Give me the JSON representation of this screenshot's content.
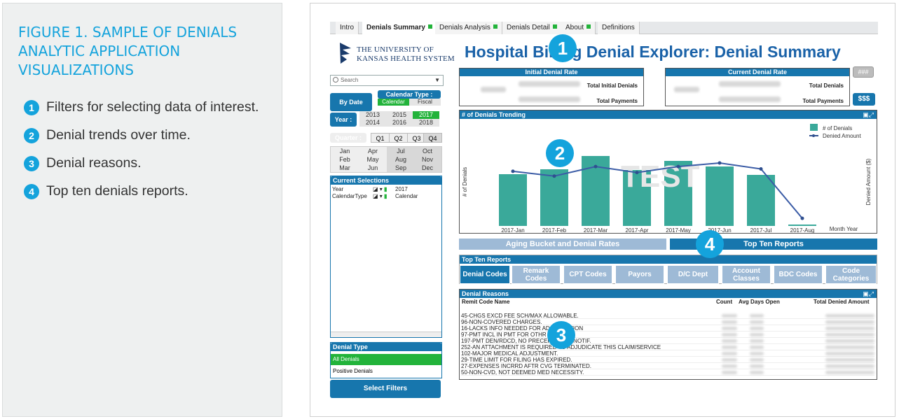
{
  "caption": {
    "heading": "FIGURE 1. SAMPLE OF DENIALS ANALYTIC APPLICATION VISUALIZATIONS",
    "items": [
      {
        "num": "1",
        "text": "Filters for selecting data of interest."
      },
      {
        "num": "2",
        "text": "Denial trends over time."
      },
      {
        "num": "3",
        "text": "Denial reasons."
      },
      {
        "num": "4",
        "text": "Top ten denials reports."
      }
    ]
  },
  "tabs": [
    "Intro",
    "Denials Summary",
    "Denials Analysis",
    "Denials Detail",
    "About",
    "Definitions"
  ],
  "logo": {
    "line1": "THE UNIVERSITY OF",
    "line2": "KANSAS HEALTH SYSTEM"
  },
  "title": "Hospital Billing Denial Explorer: Denial Summary",
  "filters": {
    "search_placeholder": "Search",
    "by_date": "By Date",
    "calendar_type": "Calendar Type :",
    "calendar": "Calendar",
    "fiscal": "Fiscal",
    "year_label": "Year :",
    "years": [
      "2013",
      "2015",
      "2017",
      "2014",
      "2016",
      "2018"
    ],
    "quarter_label": "Quarter :",
    "quarters": [
      "Q1",
      "Q2",
      "Q3",
      "Q4"
    ],
    "months": [
      "Jan",
      "Apr",
      "Jul",
      "Oct",
      "Feb",
      "May",
      "Aug",
      "Nov",
      "Mar",
      "Jun",
      "Sep",
      "Dec"
    ],
    "current_selections": "Current Selections",
    "sel_year_key": "Year",
    "sel_year_val": "2017",
    "sel_cal_key": "CalendarType",
    "sel_cal_val": "Calendar",
    "denial_type": "Denial Type",
    "all_denials": "All Denials",
    "positive_denials": "Positive Denials",
    "select_filters": "Select Filters"
  },
  "rates": {
    "initial": "Initial Denial Rate",
    "current": "Current Denial Rate",
    "total_initial_denials": "Total Initial Denials",
    "total_payments": "Total Payments",
    "total_denials": "Total Denials",
    "btn_hash": "###",
    "btn_dollar": "$$$"
  },
  "chart_panel": {
    "title": "# of Denials Trending",
    "watermark": "TEST",
    "month_year": "Month Year"
  },
  "chart_data": {
    "type": "bar",
    "categories": [
      "2017-Jan",
      "2017-Feb",
      "2017-Mar",
      "2017-Apr",
      "2017-May",
      "2017-Jun",
      "2017-Jul",
      "2017-Aug"
    ],
    "series": [
      {
        "name": "# of Denials",
        "type": "bar",
        "values": [
          74,
          81,
          100,
          80,
          93,
          85,
          73,
          2
        ]
      },
      {
        "name": "Denied Amount",
        "type": "line",
        "values": [
          80,
          72,
          88,
          78,
          88,
          94,
          84,
          1
        ]
      }
    ],
    "ylabel": "# of Denials",
    "y2label": "Denied Amount ($)",
    "xlabel": "Month Year",
    "legend": "top-right",
    "colors": {
      "bar": "#3aa99a",
      "line": "#2f4f8f"
    }
  },
  "bottom_tabs": {
    "aging": "Aging Bucket and Denial Rates",
    "top_ten": "Top Ten Reports"
  },
  "top_ten": {
    "title": "Top Ten Reports",
    "buttons": [
      "Denial Codes",
      "Remark Codes",
      "CPT Codes",
      "Payors",
      "D/C Dept",
      "Account Classes",
      "BDC Codes",
      "Code Categories"
    ]
  },
  "denial_reasons": {
    "title": "Denial Reasons",
    "columns": [
      "Remit Code Name",
      "Count",
      "Avg Days Open",
      "Total Denied Amount"
    ],
    "rows": [
      "45-CHGS EXCD FEE SCH/MAX ALLOWABLE.",
      "96-NON-COVERED CHARGES.",
      "16-LACKS INFO NEEDED FOR ADJUDICATION",
      "97-PMT INCL IN PMT FOR OTHR SVC.",
      "197-PMT DEN/RDCD, NO PRECERT/AUTH/NOTIF.",
      "252-AN ATTACHMENT IS REQUIRED TO ADJUDICATE THIS CLAIM/SERVICE",
      "102-MAJOR MEDICAL ADJUSTMENT.",
      "29-TIME LIMIT FOR FILING HAS EXPIRED.",
      "27-EXPENSES INCRRD AFTR CVG TERMINATED.",
      "50-NON-CVD, NOT DEEMED MED NECESSITY."
    ]
  },
  "callouts": [
    "1",
    "2",
    "3",
    "4"
  ],
  "colors": {
    "accent": "#14a3dc",
    "primary": "#1776ad",
    "green": "#22b33a",
    "title": "#1a62a8"
  }
}
